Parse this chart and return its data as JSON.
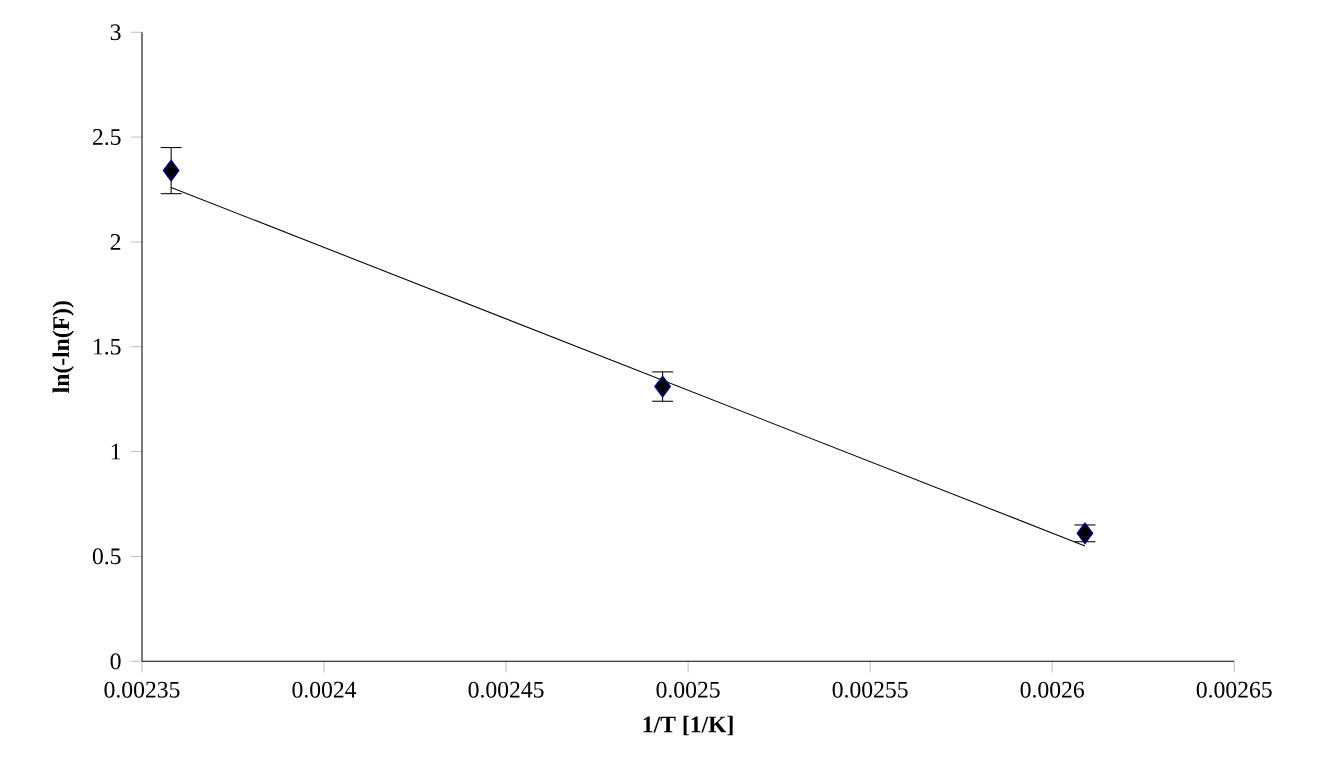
{
  "chart_data": {
    "type": "scatter",
    "xlabel": "1/T [1/K]",
    "ylabel": "ln(-ln(F))",
    "xlim": [
      0.00235,
      0.00265
    ],
    "xticks": [
      0.00235,
      0.0024,
      0.00245,
      0.0025,
      0.00255,
      0.0026,
      0.00265
    ],
    "ylim": [
      0,
      3
    ],
    "yticks": [
      0,
      0.5,
      1,
      1.5,
      2,
      2.5,
      3
    ],
    "grid": false,
    "series": [
      {
        "color": "#000000",
        "marker": "diamond",
        "x": [
          0.002358,
          0.002493,
          0.002609
        ],
        "values": [
          2.34,
          1.31,
          0.61
        ],
        "errors": [
          0.11,
          0.07,
          0.04
        ]
      },
      {
        "type": "line",
        "color": "#000000",
        "marker": "none",
        "line_style": "solid",
        "x": [
          0.002358,
          0.002609
        ],
        "values": [
          2.26,
          0.55
        ]
      }
    ]
  }
}
